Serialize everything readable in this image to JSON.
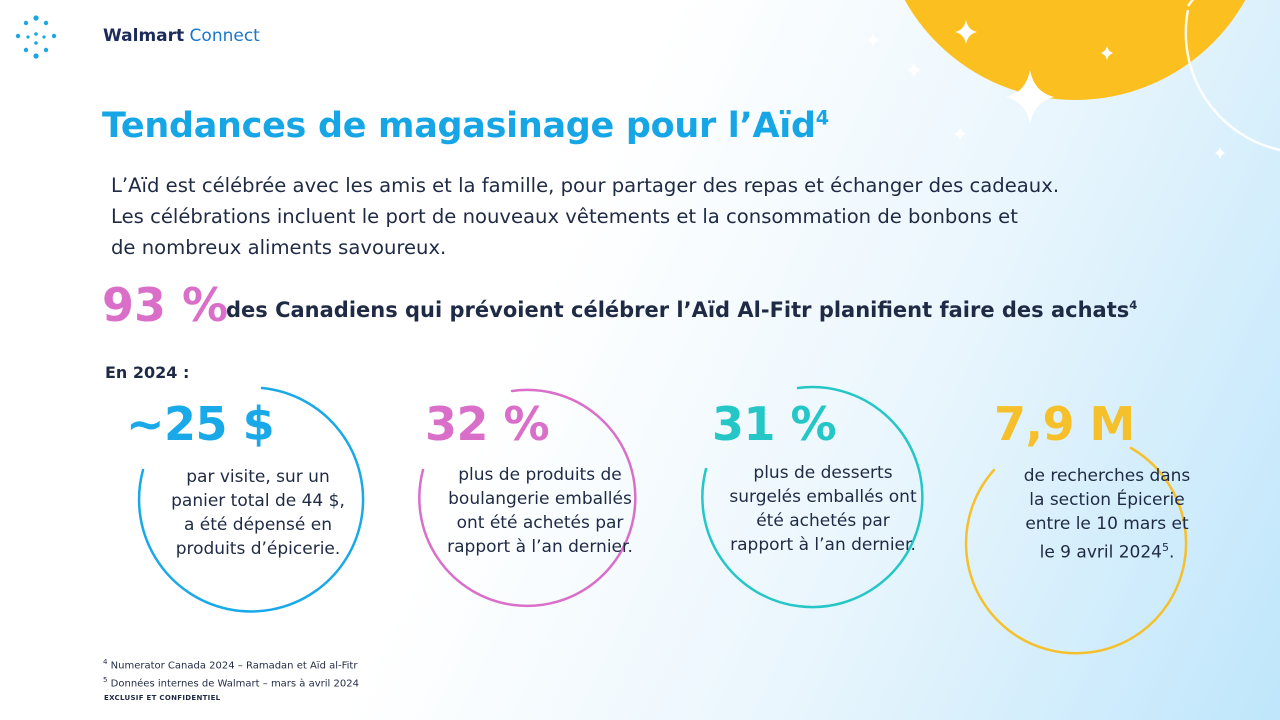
{
  "brand": {
    "name_bold": "Walmart",
    "name_light": "Connect"
  },
  "title": {
    "text": "Tendances de magasinage pour l’Aïd",
    "sup": "4"
  },
  "intro": {
    "lines": [
      "L’Aïd est célébrée avec les amis et la famille, pour partager des repas et échanger des cadeaux.",
      "Les célébrations incluent le port de nouveaux vêtements et la consommation de bonbons et",
      "de nombreux aliments savoureux."
    ]
  },
  "highlight": {
    "value": "93 %",
    "text": "des Canadiens qui prévoient célébrer l’Aïd Al-Fitr planifient faire des achats",
    "sup": "4"
  },
  "year_label": "En 2024 :",
  "stats": [
    {
      "value": "~25 $",
      "color": "#19a9e8",
      "lines": [
        "par visite, sur un",
        "panier total de 44 $,",
        "a été dépensé en",
        "produits d’épicerie."
      ]
    },
    {
      "value": "32 %",
      "color": "#d96fc9",
      "lines": [
        "plus de produits de",
        "boulangerie emballés",
        "ont été achetés par",
        "rapport à l’an dernier."
      ]
    },
    {
      "value": "31 %",
      "color": "#24c6c6",
      "lines": [
        "plus de desserts",
        "surgelés emballés ont",
        "été achetés par",
        "rapport à l’an dernier."
      ]
    },
    {
      "value": "7,9 M",
      "color": "#f6c02a",
      "lines": [
        "de recherches dans",
        "la section Épicerie",
        "entre le 10 mars et",
        "le 9 avril 2024"
      ],
      "last_sup": "5"
    }
  ],
  "footnotes": [
    {
      "num": "4",
      "text": "Numerator Canada 2024 – Ramadan et Aïd al-Fitr"
    },
    {
      "num": "5",
      "text": "Données internes de Walmart – mars à avril 2024"
    }
  ],
  "confidential": "EXCLUSIF ET CONFIDENTIEL",
  "colors": {
    "accent_blue": "#16a6e6",
    "pink": "#d96fc9",
    "teal": "#24c6c6",
    "yellow": "#f6c02a",
    "sun": "#fbbf1f",
    "text": "#1f2a44"
  },
  "icons": {
    "logo": "spark-dots-icon",
    "decor": "sparkle-star-icon"
  }
}
